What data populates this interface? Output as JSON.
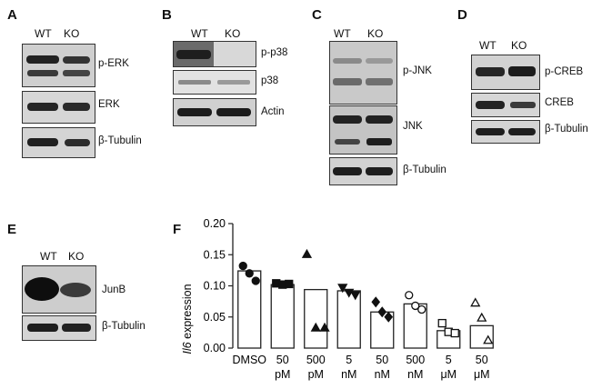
{
  "panels": {
    "A": {
      "label": "A",
      "lanes": [
        "WT",
        "KO"
      ],
      "blots": [
        "p-ERK",
        "ERK",
        "β-Tubulin"
      ]
    },
    "B": {
      "label": "B",
      "lanes": [
        "WT",
        "KO"
      ],
      "blots": [
        "p-p38",
        "p38",
        "Actin"
      ]
    },
    "C": {
      "label": "C",
      "lanes": [
        "WT",
        "KO"
      ],
      "blots": [
        "p-JNK",
        "JNK",
        "β-Tubulin"
      ]
    },
    "D": {
      "label": "D",
      "lanes": [
        "WT",
        "KO"
      ],
      "blots": [
        "p-CREB",
        "CREB",
        "β-Tubulin"
      ]
    },
    "E": {
      "label": "E",
      "lanes": [
        "WT",
        "KO"
      ],
      "blots": [
        "JunB",
        "β-Tubulin"
      ]
    },
    "F": {
      "label": "F"
    }
  },
  "chart_data": {
    "type": "bar",
    "ylabel_italic": "Il6",
    "ylabel_rest": " expression",
    "ylim": [
      0,
      0.2
    ],
    "yticks": [
      "0.00",
      "0.05",
      "0.10",
      "0.15",
      "0.20"
    ],
    "categories": [
      {
        "line1": "DMSO",
        "line2": ""
      },
      {
        "line1": "50",
        "line2": "pM"
      },
      {
        "line1": "500",
        "line2": "pM"
      },
      {
        "line1": "5",
        "line2": "nM"
      },
      {
        "line1": "50",
        "line2": "nM"
      },
      {
        "line1": "500",
        "line2": "nM"
      },
      {
        "line1": "5",
        "line2": "μM"
      },
      {
        "line1": "50",
        "line2": "μM"
      }
    ],
    "values": [
      0.124,
      0.102,
      0.094,
      0.092,
      0.058,
      0.071,
      0.028,
      0.036
    ],
    "points": [
      {
        "marker": "circle",
        "filled": true,
        "y": [
          0.132,
          0.12,
          0.108
        ]
      },
      {
        "marker": "square",
        "filled": true,
        "y": [
          0.104,
          0.102,
          0.103
        ]
      },
      {
        "marker": "triangle-up",
        "filled": true,
        "y": [
          0.15,
          0.032,
          0.032
        ]
      },
      {
        "marker": "triangle-down",
        "filled": true,
        "y": [
          0.098,
          0.09,
          0.086
        ]
      },
      {
        "marker": "diamond",
        "filled": true,
        "y": [
          0.074,
          0.058,
          0.05
        ]
      },
      {
        "marker": "circle",
        "filled": false,
        "y": [
          0.085,
          0.068,
          0.062
        ]
      },
      {
        "marker": "square",
        "filled": false,
        "y": [
          0.04,
          0.026,
          0.024
        ]
      },
      {
        "marker": "triangle-up",
        "filled": false,
        "y": [
          0.072,
          0.048,
          0.012
        ]
      }
    ]
  }
}
